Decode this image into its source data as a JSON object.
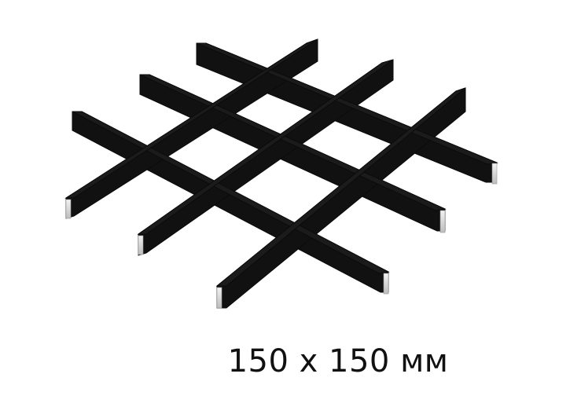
{
  "caption": {
    "text": "150 x 150 мм"
  },
  "product": {
    "icon": "ceiling-grid-icon",
    "color": "#111111",
    "highlight": "#d9d9d9"
  }
}
